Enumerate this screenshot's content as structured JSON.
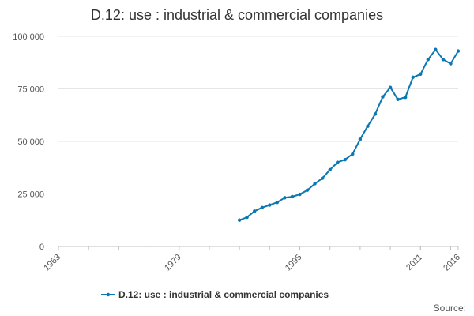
{
  "chart_data": {
    "type": "line",
    "title": "D.12: use : industrial & commercial companies",
    "xlabel": "",
    "ylabel": "",
    "xlim": [
      1963,
      2016
    ],
    "ylim": [
      0,
      100000
    ],
    "x_ticks": [
      "1963",
      "1979",
      "1995",
      "2011",
      "2016"
    ],
    "y_ticks": [
      "0",
      "25 000",
      "50 000",
      "75 000",
      "100 000"
    ],
    "grid": "horizontal",
    "legend_position": "bottom",
    "series": [
      {
        "name": "D.12: use : industrial & commercial companies",
        "color": "#0b77b3",
        "x": [
          1987,
          1988,
          1989,
          1990,
          1991,
          1992,
          1993,
          1994,
          1995,
          1996,
          1997,
          1998,
          1999,
          2000,
          2001,
          2002,
          2003,
          2004,
          2005,
          2006,
          2007,
          2008,
          2009,
          2010,
          2011,
          2012,
          2013,
          2014,
          2015,
          2016
        ],
        "values": [
          12500,
          13900,
          16800,
          18500,
          19700,
          21000,
          23200,
          23700,
          24800,
          26800,
          29900,
          32500,
          36500,
          40000,
          41300,
          44000,
          51000,
          57200,
          63000,
          71200,
          75700,
          70000,
          71000,
          80500,
          82000,
          89000,
          93700,
          89000,
          87000,
          93000
        ]
      }
    ]
  },
  "source_label": "Source:"
}
